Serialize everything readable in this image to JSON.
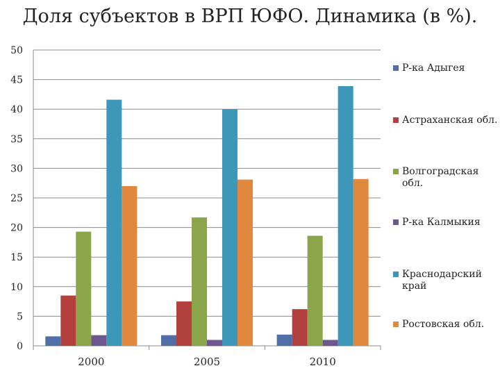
{
  "chart_data": {
    "type": "bar",
    "title": "Доля субъектов в ВРП ЮФО. Динамика (в %).",
    "categories": [
      "2000",
      "2005",
      "2010"
    ],
    "series": [
      {
        "name": "Р-ка Адыгея",
        "color": "#4f6fa8",
        "values": [
          1.6,
          1.8,
          1.9
        ]
      },
      {
        "name": "Астраханская обл.",
        "color": "#b2403d",
        "values": [
          8.5,
          7.5,
          6.2
        ]
      },
      {
        "name": "Волгоградская обл.",
        "color": "#8ba54b",
        "values": [
          19.3,
          21.7,
          18.6
        ]
      },
      {
        "name": "Р-ка Калмыкия",
        "color": "#6e578f",
        "values": [
          1.8,
          1.0,
          1.0
        ]
      },
      {
        "name": "Краснодарский край",
        "color": "#3c97b8",
        "values": [
          41.6,
          40.0,
          43.9
        ]
      },
      {
        "name": "Ростовская обл.",
        "color": "#e0883d",
        "values": [
          27.0,
          28.1,
          28.2
        ]
      }
    ],
    "ylim": [
      0,
      50
    ],
    "yticks": [
      "0",
      "5",
      "10",
      "15",
      "20",
      "25",
      "30",
      "35",
      "40",
      "45",
      "50"
    ],
    "grid": true,
    "legend_position": "right",
    "xlabel": "",
    "ylabel": ""
  }
}
